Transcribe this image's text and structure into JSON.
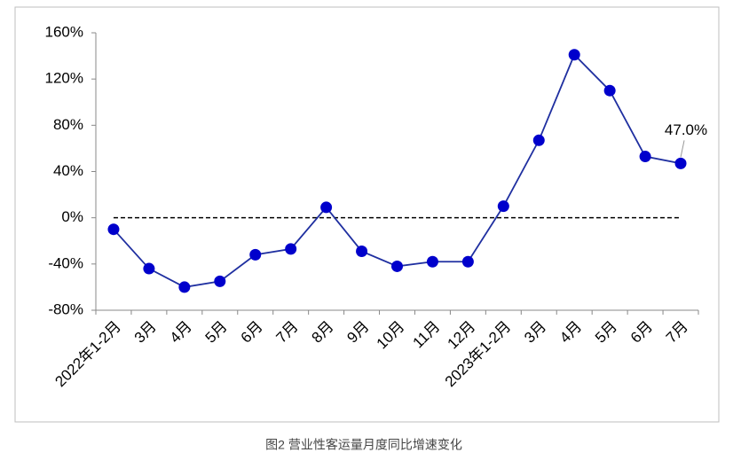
{
  "chart_data": {
    "type": "line",
    "caption": "图2  营业性客运量月度同比增速变化",
    "categories": [
      "2022年1-2月",
      "3月",
      "4月",
      "5月",
      "6月",
      "7月",
      "8月",
      "9月",
      "10月",
      "11月",
      "12月",
      "2023年1-2月",
      "3月",
      "4月",
      "5月",
      "6月",
      "7月"
    ],
    "values": [
      -10,
      -44,
      -60,
      -55,
      -32,
      -27,
      9,
      -29,
      -42,
      -38,
      -38,
      10,
      67,
      141,
      110,
      53,
      47
    ],
    "value_labels": [
      null,
      null,
      null,
      null,
      null,
      null,
      null,
      null,
      null,
      null,
      null,
      null,
      null,
      null,
      null,
      null,
      "47.0%"
    ],
    "color": "#0000cc",
    "line_color": "#1f2fa0",
    "ylim": [
      -80,
      160
    ],
    "yticks": [
      {
        "value": -80,
        "label": "-80%"
      },
      {
        "value": -40,
        "label": "-40%"
      },
      {
        "value": 0,
        "label": "0%"
      },
      {
        "value": 40,
        "label": "40%"
      },
      {
        "value": 80,
        "label": "80%"
      },
      {
        "value": 120,
        "label": "120%"
      },
      {
        "value": 160,
        "label": "160%"
      }
    ],
    "reference_line": 0
  }
}
